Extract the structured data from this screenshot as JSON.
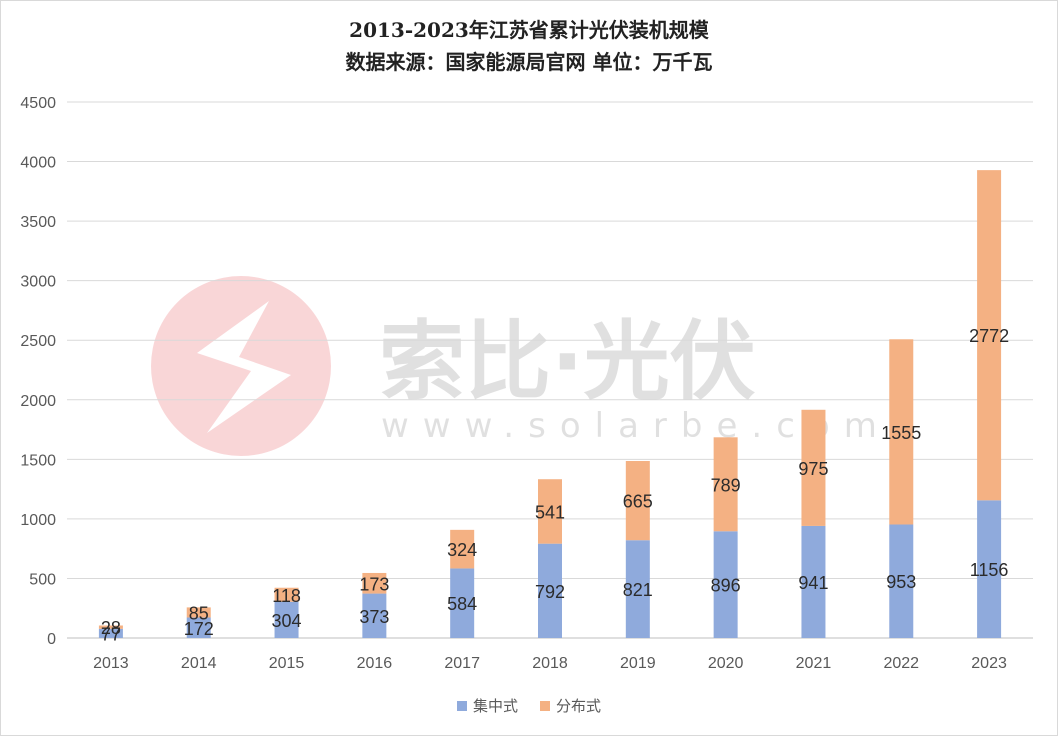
{
  "chart_data": {
    "type": "bar",
    "stacked": true,
    "title": "2013-2023年江苏省累计光伏装机规模",
    "subtitle": "数据来源：国家能源局官网 单位：万千瓦",
    "categories": [
      "2013",
      "2014",
      "2015",
      "2016",
      "2017",
      "2018",
      "2019",
      "2020",
      "2021",
      "2022",
      "2023"
    ],
    "series": [
      {
        "name": "集中式",
        "color": "#8faadc",
        "values": [
          77,
          172,
          304,
          373,
          584,
          792,
          821,
          896,
          941,
          953,
          1156
        ]
      },
      {
        "name": "分布式",
        "color": "#f4b183",
        "values": [
          28,
          85,
          118,
          173,
          324,
          541,
          665,
          789,
          975,
          1555,
          2772
        ]
      }
    ],
    "ylim": [
      0,
      4500
    ],
    "yticks": [
      0,
      500,
      1000,
      1500,
      2000,
      2500,
      3000,
      3500,
      4000,
      4500
    ],
    "grid": true,
    "legend": "bottom"
  },
  "watermark": {
    "brand": "索比·光伏",
    "url": "www.solarbe.com"
  }
}
